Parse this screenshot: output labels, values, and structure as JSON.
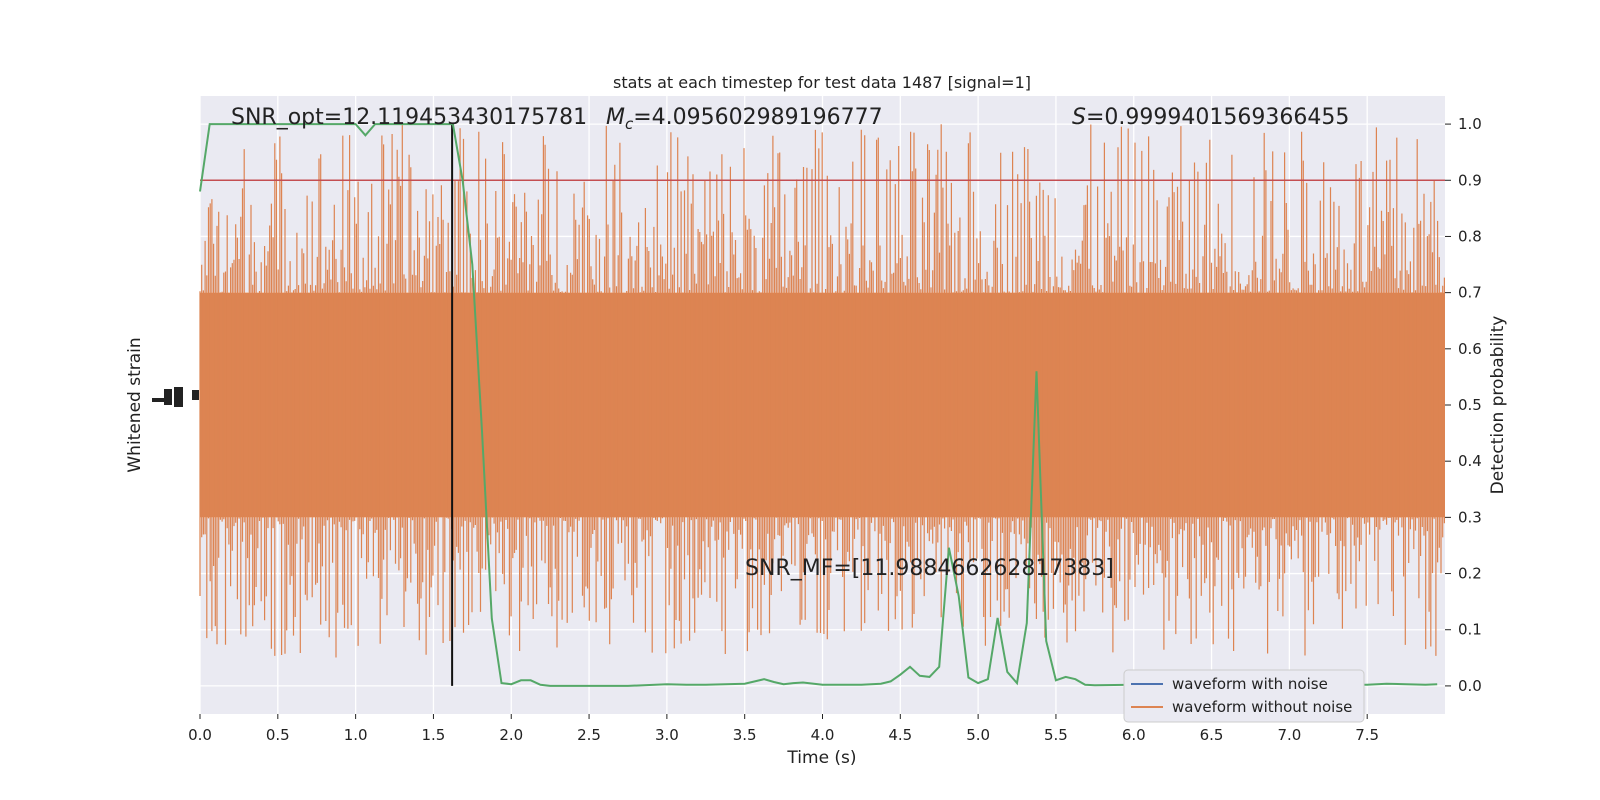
{
  "chart_data": {
    "type": "line",
    "title": "stats at each timestep for test data 1487 [signal=1]",
    "xlabel": "Time (s)",
    "ylabel_left": "Whitened strain",
    "ylabel_right": "Detection probability",
    "xlim": [
      0.0,
      8.0
    ],
    "ylim_right": [
      -0.05,
      1.05
    ],
    "x_ticks": [
      0.0,
      0.5,
      1.0,
      1.5,
      2.0,
      2.5,
      3.0,
      3.5,
      4.0,
      4.5,
      5.0,
      5.5,
      6.0,
      6.5,
      7.0,
      7.5
    ],
    "x_tick_labels": [
      "0.0",
      "0.5",
      "1.0",
      "1.5",
      "2.0",
      "2.5",
      "3.0",
      "3.5",
      "4.0",
      "4.5",
      "5.0",
      "5.5",
      "6.0",
      "6.5",
      "7.0",
      "7.5"
    ],
    "y_right_ticks": [
      0.0,
      0.1,
      0.2,
      0.3,
      0.4,
      0.5,
      0.6,
      0.7,
      0.8,
      0.9,
      1.0
    ],
    "y_right_tick_labels": [
      "0.0",
      "0.1",
      "0.2",
      "0.3",
      "0.4",
      "0.5",
      "0.6",
      "0.7",
      "0.8",
      "0.9",
      "1.0"
    ],
    "grid": true,
    "legend_position": "bottom-right",
    "annotations": {
      "snr_opt": "SNR_opt=12.119453430175781",
      "mc_symbol": "M",
      "mc_subscript": "c",
      "mc_value": "=4.095602989196777",
      "s_symbol": "S",
      "s_value": "=0.9999401569366455",
      "snr_mf": "SNR_MF=[11.988466262817383]"
    },
    "threshold": 0.9,
    "merger_time": 1.62,
    "series": [
      {
        "name": "waveform with noise",
        "color": "#4c72b0"
      },
      {
        "name": "waveform without noise",
        "color": "#dd8452"
      },
      {
        "color": "#55a868",
        "x": [
          0.0,
          0.0625,
          0.125,
          0.25,
          0.5,
          0.75,
          1.0,
          1.0625,
          1.125,
          1.25,
          1.5,
          1.5625,
          1.625,
          1.6875,
          1.75,
          1.8125,
          1.875,
          1.9375,
          2.0,
          2.0625,
          2.125,
          2.1875,
          2.25,
          2.3125,
          2.5,
          2.75,
          3.0,
          3.125,
          3.25,
          3.375,
          3.5,
          3.625,
          3.6875,
          3.75,
          3.8125,
          3.875,
          4.0,
          4.25,
          4.375,
          4.4375,
          4.5,
          4.5625,
          4.625,
          4.6875,
          4.75,
          4.8125,
          4.875,
          4.9375,
          5.0,
          5.0625,
          5.125,
          5.1875,
          5.25,
          5.3125,
          5.375,
          5.4375,
          5.5,
          5.5625,
          5.625,
          5.6875,
          5.75,
          6.0,
          6.25,
          6.5,
          6.75,
          7.0,
          7.25,
          7.5,
          7.625,
          7.75,
          7.875,
          7.95
        ],
        "y": [
          0.88,
          1.0,
          1.0,
          1.0,
          1.0,
          1.0,
          1.0,
          0.98,
          1.0,
          1.0,
          1.0,
          1.0,
          1.0,
          0.9,
          0.75,
          0.45,
          0.12,
          0.005,
          0.003,
          0.01,
          0.01,
          0.002,
          0.0,
          0.0,
          0.0,
          0.0,
          0.003,
          0.002,
          0.002,
          0.003,
          0.004,
          0.012,
          0.007,
          0.003,
          0.005,
          0.006,
          0.002,
          0.002,
          0.004,
          0.008,
          0.02,
          0.034,
          0.018,
          0.016,
          0.034,
          0.246,
          0.16,
          0.015,
          0.005,
          0.012,
          0.121,
          0.025,
          0.005,
          0.112,
          0.56,
          0.08,
          0.01,
          0.016,
          0.012,
          0.002,
          0.001,
          0.002,
          0.003,
          0.002,
          0.002,
          0.002,
          0.002,
          0.002,
          0.004,
          0.003,
          0.002,
          0.003
        ]
      }
    ]
  }
}
